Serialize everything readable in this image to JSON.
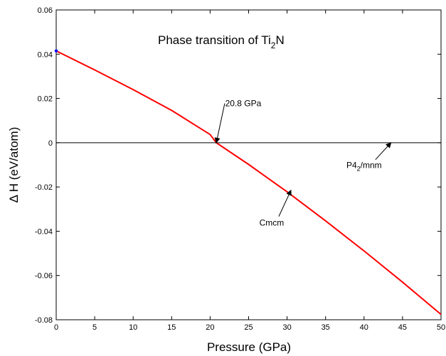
{
  "chart_data": {
    "type": "line",
    "title": "Phase transition of Ti",
    "title_subscript": "2",
    "title_suffix": "N",
    "xlabel": "Pressure (GPa)",
    "ylabel": "Δ H (eV/atom)",
    "xlim": [
      0,
      50
    ],
    "ylim": [
      -0.08,
      0.06
    ],
    "grid": false,
    "x_ticks": [
      "0",
      "5",
      "10",
      "15",
      "20",
      "25",
      "30",
      "35",
      "40",
      "45",
      "50"
    ],
    "x_tick_values": [
      0,
      5,
      10,
      15,
      20,
      25,
      30,
      35,
      40,
      45,
      50
    ],
    "y_ticks": [
      "0.06",
      "0.04",
      "0.02",
      "0",
      "-0.02",
      "-0.04",
      "-0.06",
      "-0.08"
    ],
    "y_tick_values": [
      0.06,
      0.04,
      0.02,
      0,
      -0.02,
      -0.04,
      -0.06,
      -0.08
    ],
    "series": [
      {
        "color": "#ff0000",
        "x": [
          0,
          5,
          10,
          15,
          20,
          20.8,
          25,
          30,
          35,
          40,
          45,
          50
        ],
        "y": [
          0.0415,
          0.0329,
          0.024,
          0.0146,
          0.0037,
          0.0,
          -0.0098,
          -0.0222,
          -0.0353,
          -0.0489,
          -0.063,
          -0.0776
        ]
      },
      {
        "color": "#000000",
        "x": [
          0,
          50
        ],
        "y": [
          0,
          0
        ]
      }
    ],
    "marker": {
      "x": 0,
      "y": 0.0415,
      "color": "#0000ff"
    },
    "annotations": [
      {
        "text": "20.8 GPa",
        "arrow_tip": [
          20.8,
          0.0
        ],
        "text_at": [
          24.3,
          0.0165
        ]
      },
      {
        "text": "Cmcm",
        "arrow_tip": [
          30.5,
          -0.0215
        ],
        "text_at": [
          28.0,
          -0.0375
        ]
      },
      {
        "text": "P4",
        "subscript": "2",
        "suffix": "/mnm",
        "arrow_tip": [
          43.5,
          0.0
        ],
        "text_at": [
          40.0,
          -0.0115
        ]
      }
    ]
  }
}
